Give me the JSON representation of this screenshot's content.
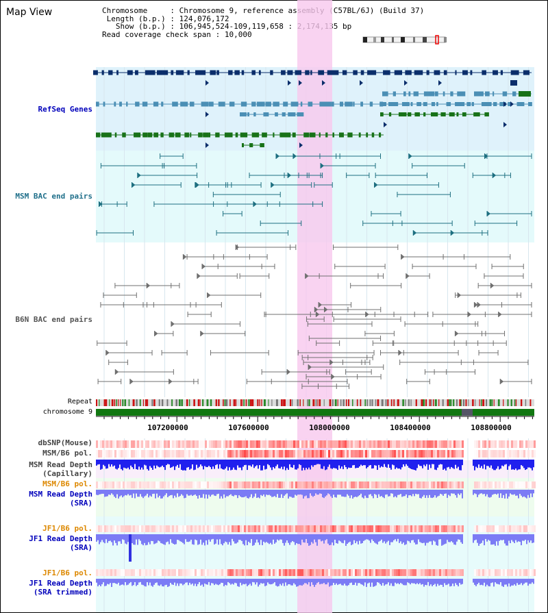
{
  "window": {
    "title": "Map View"
  },
  "info": {
    "chromosome_key": "Chromosome",
    "chromosome_value": "Chromosome 9, reference assembly (C57BL/6J) (Build 37)",
    "length_key": "Length (b.p.)",
    "length_value": "124,076,172",
    "show_key": "Show (b.p.)",
    "show_value": "106,945,524-109,119,658 : 2,174,135 bp",
    "span_key": "Read coverage check span",
    "span_value": "10,000"
  },
  "tracks": {
    "refseq": "RefSeq Genes",
    "msm_bac": "MSM BAC end pairs",
    "b6n_bac": "B6N BAC end pairs",
    "repeat": "Repeat",
    "chromosome": "chromosome 9",
    "dbsnp": "dbSNP(Mouse)",
    "msm_pol": "MSM/B6 pol.",
    "msm_depth_cap_1": "MSM Read Depth",
    "msm_depth_cap_2": "(Capillary)",
    "msm_pol2": "MSM/B6 pol.",
    "msm_depth_sra_1": "MSM Read Depth",
    "msm_depth_sra_2": "(SRA)",
    "jf1_pol": "JF1/B6 pol.",
    "jf1_depth_1": "JF1 Read Depth",
    "jf1_depth_2": "(SRA)",
    "jf1_pol2": "JF1/B6 pol.",
    "jf1_trim_1": "JF1 Read Depth",
    "jf1_trim_2": "(SRA trimmed)"
  },
  "axis": {
    "ticks": [
      "107200000",
      "107600000",
      "108000000",
      "108400000",
      "108800000"
    ]
  },
  "colors": {
    "refseq_bg": "#dff2fb",
    "msm_bg": "#e4fafb",
    "highlight": "#f7c8ee",
    "navy": "#0b2e6b",
    "steel": "#4b8fb5",
    "green": "#187218",
    "teal": "#1d6f80",
    "gray": "#6f6f6f",
    "depth_dark": "#2020ee",
    "depth_light": "#7b7bf5",
    "pol_red": "#ee3333",
    "chrom_green": "#117711",
    "label_blue": "#0000bb",
    "label_orange": "#dd8800",
    "label_teal": "#1f6f8a"
  }
}
